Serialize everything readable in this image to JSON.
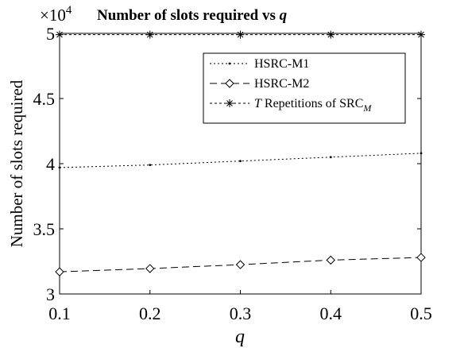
{
  "chart_data": {
    "type": "line",
    "title": "Number of slots required vs",
    "title_var": "q",
    "xlabel": "q",
    "ylabel": "Number of slots required",
    "exponent_multiplier": "×10",
    "exponent_power": "4",
    "x": [
      0.1,
      0.2,
      0.3,
      0.4,
      0.5
    ],
    "xlim": [
      0.1,
      0.5
    ],
    "ylim": [
      30000,
      50000
    ],
    "x_ticks": [
      "0.1",
      "0.2",
      "0.3",
      "0.4",
      "0.5"
    ],
    "y_ticks": [
      "3",
      "3.5",
      "4",
      "4.5",
      "5"
    ],
    "y_tick_values": [
      30000,
      35000,
      40000,
      45000,
      50000
    ],
    "x_tick_values": [
      0.1,
      0.2,
      0.3,
      0.4,
      0.5
    ],
    "grid": false,
    "legend_position": "top-right",
    "series": [
      {
        "name": "HSRC-M1",
        "values": [
          39700,
          39900,
          40200,
          40500,
          40800
        ],
        "dash": "2,3",
        "marker": "dot",
        "color": "#000000"
      },
      {
        "name": "HSRC-M2",
        "values": [
          31700,
          31950,
          32250,
          32600,
          32800
        ],
        "dash": "9,5",
        "marker": "diamond",
        "color": "#000000"
      },
      {
        "name_prefix": "T",
        "name_mid": " Repetitions of SRC",
        "name_sub": "M",
        "values": [
          49900,
          49900,
          49900,
          49900,
          49900
        ],
        "dash": "3,3",
        "marker": "star",
        "color": "#000000"
      }
    ]
  }
}
